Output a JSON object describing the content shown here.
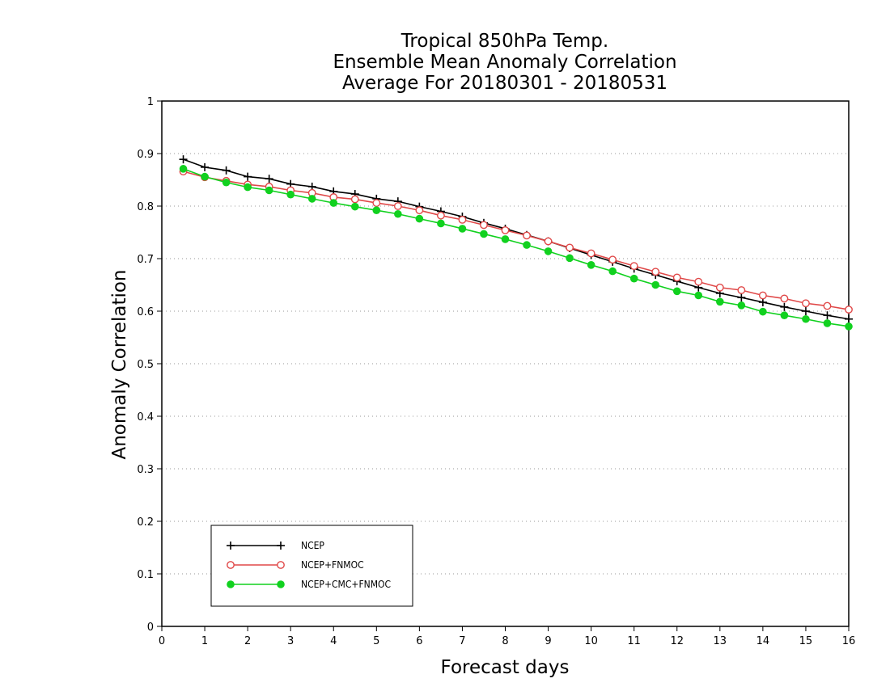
{
  "chart_data": {
    "type": "line",
    "title_lines": [
      "Tropical 850hPa Temp.",
      "Ensemble Mean Anomaly Correlation",
      "Average For 20180301 - 20180531"
    ],
    "xlabel": "Forecast days",
    "ylabel": "Anomaly Correlation",
    "xlim": [
      0,
      16
    ],
    "ylim": [
      0,
      1
    ],
    "x_ticks": [
      "0",
      "1",
      "2",
      "3",
      "4",
      "5",
      "6",
      "7",
      "8",
      "9",
      "10",
      "11",
      "12",
      "13",
      "14",
      "15",
      "16"
    ],
    "y_ticks": [
      "0",
      "0.1",
      "0.2",
      "0.3",
      "0.4",
      "0.5",
      "0.6",
      "0.7",
      "0.8",
      "0.9",
      "1"
    ],
    "grid": "horizontal dotted",
    "legend_position": "bottom-left",
    "x": [
      0.5,
      1,
      1.5,
      2,
      2.5,
      3,
      3.5,
      4,
      4.5,
      5,
      5.5,
      6,
      6.5,
      7,
      7.5,
      8,
      8.5,
      9,
      9.5,
      10,
      10.5,
      11,
      11.5,
      12,
      12.5,
      13,
      13.5,
      14,
      14.5,
      15,
      15.5,
      16
    ],
    "series": [
      {
        "name": "NCEP",
        "color": "#000000",
        "marker": "plus",
        "values": [
          0.889,
          0.874,
          0.868,
          0.856,
          0.852,
          0.842,
          0.837,
          0.828,
          0.823,
          0.814,
          0.809,
          0.799,
          0.79,
          0.78,
          0.768,
          0.757,
          0.745,
          0.733,
          0.72,
          0.707,
          0.694,
          0.681,
          0.669,
          0.657,
          0.645,
          0.634,
          0.626,
          0.617,
          0.608,
          0.6,
          0.592,
          0.585
        ]
      },
      {
        "name": "NCEP+FNMOC",
        "color": "#e04848",
        "marker": "open-circle",
        "values": [
          0.866,
          0.855,
          0.848,
          0.841,
          0.837,
          0.83,
          0.825,
          0.817,
          0.813,
          0.806,
          0.8,
          0.792,
          0.782,
          0.774,
          0.764,
          0.754,
          0.744,
          0.733,
          0.721,
          0.71,
          0.698,
          0.686,
          0.675,
          0.664,
          0.656,
          0.645,
          0.64,
          0.63,
          0.624,
          0.615,
          0.61,
          0.603
        ]
      },
      {
        "name": "NCEP+CMC+FNMOC",
        "color": "#11d11f",
        "marker": "filled-circle",
        "values": [
          0.871,
          0.856,
          0.845,
          0.836,
          0.83,
          0.822,
          0.814,
          0.806,
          0.799,
          0.792,
          0.785,
          0.776,
          0.767,
          0.757,
          0.747,
          0.737,
          0.726,
          0.714,
          0.701,
          0.688,
          0.676,
          0.662,
          0.65,
          0.638,
          0.63,
          0.618,
          0.611,
          0.599,
          0.592,
          0.585,
          0.577,
          0.571
        ]
      }
    ]
  }
}
